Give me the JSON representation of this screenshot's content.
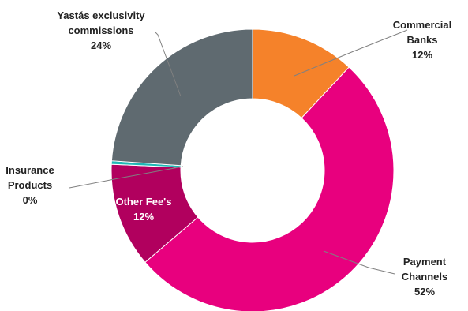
{
  "chart_data": {
    "type": "pie",
    "variant": "donut",
    "series": [
      {
        "name": "",
        "slices": [
          {
            "label_lines": [
              "Commercial",
              "Banks"
            ],
            "percent_label": "12%",
            "value": 12,
            "color": "#F5822A"
          },
          {
            "label_lines": [
              "Payment",
              "Channels"
            ],
            "percent_label": "52%",
            "value": 52,
            "color": "#E8007E"
          },
          {
            "label_lines": [
              "Other Fee's"
            ],
            "percent_label": "12%",
            "value": 12,
            "color": "#B1005E"
          },
          {
            "label_lines": [
              "Insurance",
              "Products"
            ],
            "percent_label": "0%",
            "value": 0.4,
            "color": "#1FB7B5"
          },
          {
            "label_lines": [
              "Yastás exclusivity",
              "commissions"
            ],
            "percent_label": "24%",
            "value": 24,
            "color": "#5F6A70"
          }
        ]
      }
    ],
    "start_angle_deg": 0,
    "direction": "clockwise",
    "legend": "none",
    "title": ""
  }
}
